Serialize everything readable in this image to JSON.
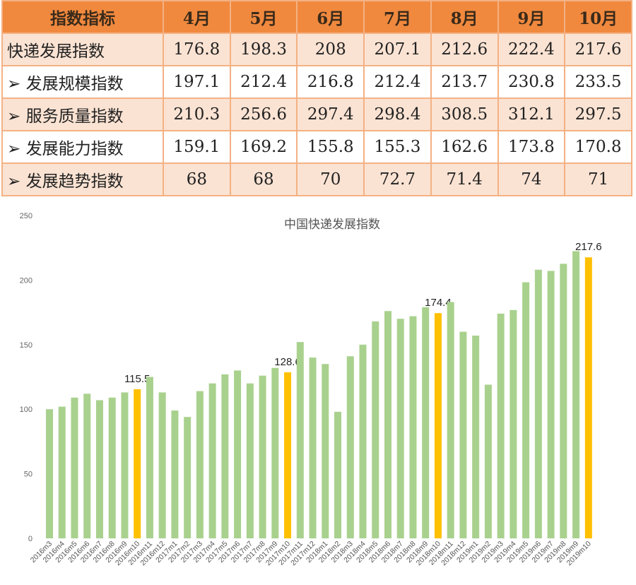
{
  "table": {
    "header": [
      "指数指标",
      "4月",
      "5月",
      "6月",
      "7月",
      "8月",
      "9月",
      "10月"
    ],
    "rows": [
      [
        "快递发展指数",
        "176.8",
        "198.3",
        "208",
        "207.1",
        "212.6",
        "222.4",
        "217.6"
      ],
      [
        "➢  发展规模指数",
        "197.1",
        "212.4",
        "216.8",
        "212.4",
        "213.7",
        "230.8",
        "233.5"
      ],
      [
        "➢  服务质量指数",
        "210.3",
        "256.6",
        "297.4",
        "298.4",
        "308.5",
        "312.1",
        "297.5"
      ],
      [
        "➢  发展能力指数",
        "159.1",
        "169.2",
        "155.8",
        "155.3",
        "162.6",
        "173.8",
        "170.8"
      ],
      [
        "➢  发展趋势指数",
        "68",
        "68",
        "70",
        "72.7",
        "71.4",
        "74",
        "71"
      ]
    ]
  },
  "chart_data": {
    "type": "bar",
    "title": "中国快递发展指数",
    "categories": [
      "2016m3",
      "2016m4",
      "2016m5",
      "2016m6",
      "2016m7",
      "2016m8",
      "2016m9",
      "2016m10",
      "2016m11",
      "2016m12",
      "2017m1",
      "2017m2",
      "2017m3",
      "2017m4",
      "2017m5",
      "2017m6",
      "2017m7",
      "2017m8",
      "2017m9",
      "2017m10",
      "2017m11",
      "2017m12",
      "2018m1",
      "2018m2",
      "2018m3",
      "2018m4",
      "2018m5",
      "2018m6",
      "2018m7",
      "2018m8",
      "2018m9",
      "2018m10",
      "2018m11",
      "2018m12",
      "2019m1",
      "2019m2",
      "2019m3",
      "2019m4",
      "2019m5",
      "2019m6",
      "2019m7",
      "2019m8",
      "2019m9",
      "2019m10"
    ],
    "values": [
      100,
      102,
      109,
      112,
      107,
      109,
      113,
      115.5,
      125,
      113,
      99,
      94,
      114,
      120,
      127,
      130,
      120,
      126,
      132,
      128.6,
      152,
      140,
      135,
      98,
      141,
      150,
      168,
      176,
      170,
      172,
      179,
      174.4,
      183,
      160,
      157,
      119,
      174,
      176.8,
      198.3,
      208,
      207.1,
      212.6,
      222.4,
      217.6
    ],
    "value_labels": [
      null,
      null,
      null,
      null,
      null,
      null,
      null,
      "115.5",
      null,
      null,
      null,
      null,
      null,
      null,
      null,
      null,
      null,
      null,
      null,
      "128.6",
      null,
      null,
      null,
      null,
      null,
      null,
      null,
      null,
      null,
      null,
      null,
      "174.4",
      null,
      null,
      null,
      null,
      null,
      null,
      null,
      null,
      null,
      null,
      null,
      "217.6"
    ],
    "colors": [
      "#a9d18e",
      "#a9d18e",
      "#a9d18e",
      "#a9d18e",
      "#a9d18e",
      "#a9d18e",
      "#a9d18e",
      "#ffc000",
      "#a9d18e",
      "#a9d18e",
      "#a9d18e",
      "#a9d18e",
      "#a9d18e",
      "#a9d18e",
      "#a9d18e",
      "#a9d18e",
      "#a9d18e",
      "#a9d18e",
      "#a9d18e",
      "#ffc000",
      "#a9d18e",
      "#a9d18e",
      "#a9d18e",
      "#a9d18e",
      "#a9d18e",
      "#a9d18e",
      "#a9d18e",
      "#a9d18e",
      "#a9d18e",
      "#a9d18e",
      "#a9d18e",
      "#ffc000",
      "#a9d18e",
      "#a9d18e",
      "#a9d18e",
      "#a9d18e",
      "#a9d18e",
      "#a9d18e",
      "#a9d18e",
      "#a9d18e",
      "#a9d18e",
      "#a9d18e",
      "#a9d18e",
      "#ffc000"
    ],
    "ylim": [
      0,
      250
    ],
    "yticks": [
      0,
      50,
      100,
      150,
      200,
      250
    ],
    "grid": false
  }
}
